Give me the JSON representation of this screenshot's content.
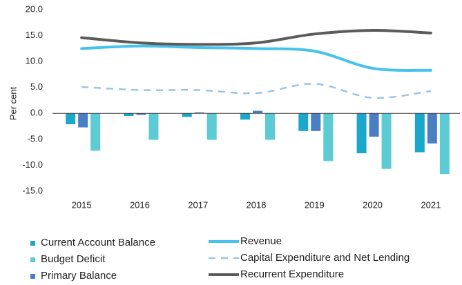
{
  "chart_data": {
    "type": "bar-line",
    "y_label": "Per cent",
    "categories": [
      "2015",
      "2016",
      "2017",
      "2018",
      "2019",
      "2020",
      "2021"
    ],
    "ylim": [
      -15,
      20
    ],
    "yticks": [
      {
        "value": -15,
        "label": "-15.0"
      },
      {
        "value": -10,
        "label": "-10.0"
      },
      {
        "value": -5,
        "label": "-5.0"
      },
      {
        "value": 0,
        "label": "0.0"
      },
      {
        "value": 5,
        "label": "5.0"
      },
      {
        "value": 10,
        "label": "10.0"
      },
      {
        "value": 15,
        "label": "15.0"
      },
      {
        "value": 20,
        "label": "20.0"
      }
    ],
    "grid": false,
    "series": [
      {
        "name": "Current Account Balance",
        "type": "bar",
        "color": "#1aa7c9",
        "values": [
          -2.1,
          -0.5,
          -0.7,
          -1.2,
          -3.4,
          -7.7,
          -7.5
        ]
      },
      {
        "name": "Primary Balance",
        "type": "bar",
        "color": "#4a7fc4",
        "values": [
          -2.7,
          -0.3,
          0.2,
          0.5,
          -3.4,
          -4.5,
          -5.8
        ]
      },
      {
        "name": "Budget Deficit",
        "type": "bar",
        "color": "#5ccbd3",
        "values": [
          -7.2,
          -5.1,
          -5.1,
          -5.1,
          -9.2,
          -10.7,
          -11.7
        ]
      },
      {
        "name": "Revenue",
        "type": "line",
        "color": "#45c3ea",
        "values": [
          12.5,
          13.0,
          12.7,
          12.5,
          12.0,
          8.7,
          8.3
        ]
      },
      {
        "name": "Capital Expenditure and Net Lending",
        "type": "line",
        "dashed": true,
        "color": "#9cc4e6",
        "values": [
          5.1,
          4.5,
          4.5,
          3.9,
          5.7,
          3.0,
          4.3
        ]
      },
      {
        "name": "Recurrent Expenditure",
        "type": "line",
        "color": "#5b5b5b",
        "values": [
          14.6,
          13.6,
          13.3,
          13.6,
          15.3,
          16.0,
          15.5
        ]
      }
    ]
  }
}
